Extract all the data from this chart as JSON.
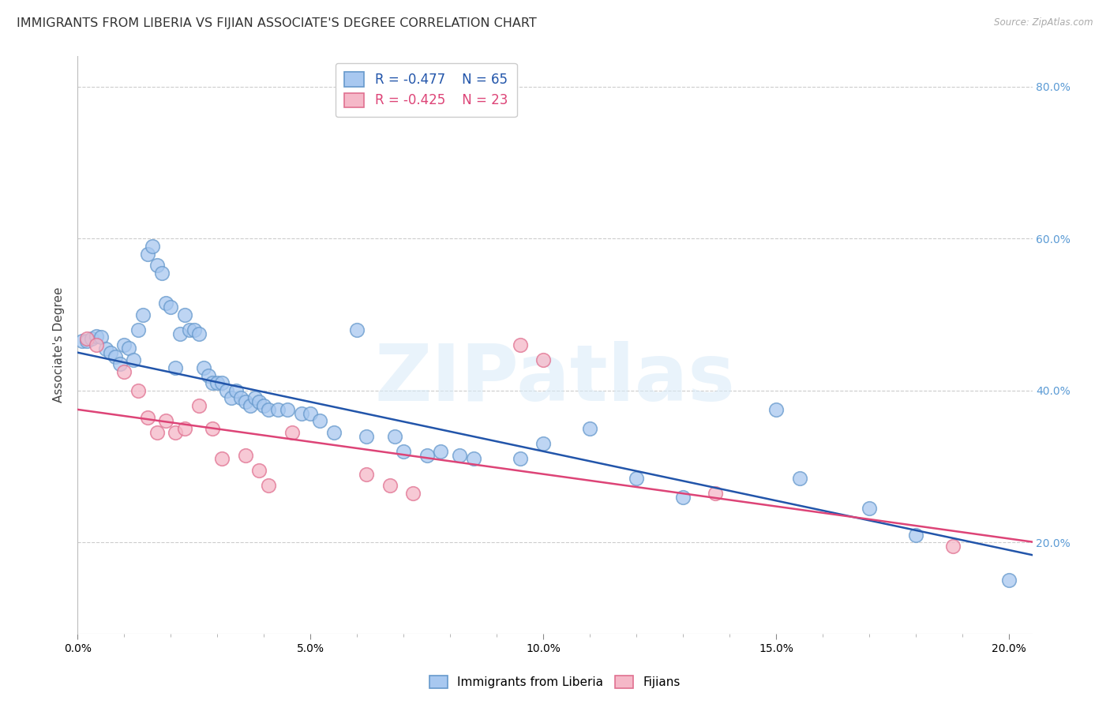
{
  "title": "IMMIGRANTS FROM LIBERIA VS FIJIAN ASSOCIATE'S DEGREE CORRELATION CHART",
  "source": "Source: ZipAtlas.com",
  "ylabel": "Associate's Degree",
  "watermark": "ZIPatlas",
  "xlim": [
    0.0,
    0.205
  ],
  "ylim": [
    0.08,
    0.84
  ],
  "xticks": [
    0.0,
    0.05,
    0.1,
    0.15,
    0.2
  ],
  "yticks": [
    0.2,
    0.4,
    0.6,
    0.8
  ],
  "blue_R": "-0.477",
  "blue_N": "65",
  "pink_R": "-0.425",
  "pink_N": "23",
  "blue_face_color": "#A8C8F0",
  "blue_edge_color": "#6699CC",
  "pink_face_color": "#F5B8C8",
  "pink_edge_color": "#E07090",
  "blue_line_color": "#2255AA",
  "pink_line_color": "#DD4477",
  "blue_intercept": 0.45,
  "blue_slope": -1.3,
  "pink_intercept": 0.375,
  "pink_slope": -0.85,
  "background_color": "#FFFFFF",
  "grid_color": "#CCCCCC",
  "right_axis_color": "#5B9BD5",
  "title_fontsize": 11.5,
  "axis_label_fontsize": 11,
  "tick_fontsize": 10,
  "legend_fontsize": 12,
  "blue_points": [
    [
      0.001,
      0.465
    ],
    [
      0.002,
      0.465
    ],
    [
      0.003,
      0.468
    ],
    [
      0.004,
      0.472
    ],
    [
      0.005,
      0.47
    ],
    [
      0.006,
      0.455
    ],
    [
      0.007,
      0.45
    ],
    [
      0.008,
      0.445
    ],
    [
      0.009,
      0.435
    ],
    [
      0.01,
      0.46
    ],
    [
      0.011,
      0.456
    ],
    [
      0.012,
      0.44
    ],
    [
      0.013,
      0.48
    ],
    [
      0.014,
      0.5
    ],
    [
      0.015,
      0.58
    ],
    [
      0.016,
      0.59
    ],
    [
      0.017,
      0.565
    ],
    [
      0.018,
      0.555
    ],
    [
      0.019,
      0.515
    ],
    [
      0.02,
      0.51
    ],
    [
      0.021,
      0.43
    ],
    [
      0.022,
      0.475
    ],
    [
      0.023,
      0.5
    ],
    [
      0.024,
      0.48
    ],
    [
      0.025,
      0.48
    ],
    [
      0.026,
      0.475
    ],
    [
      0.027,
      0.43
    ],
    [
      0.028,
      0.42
    ],
    [
      0.029,
      0.41
    ],
    [
      0.03,
      0.41
    ],
    [
      0.031,
      0.41
    ],
    [
      0.032,
      0.4
    ],
    [
      0.033,
      0.39
    ],
    [
      0.034,
      0.4
    ],
    [
      0.035,
      0.39
    ],
    [
      0.036,
      0.385
    ],
    [
      0.037,
      0.38
    ],
    [
      0.038,
      0.39
    ],
    [
      0.039,
      0.385
    ],
    [
      0.04,
      0.38
    ],
    [
      0.041,
      0.375
    ],
    [
      0.043,
      0.375
    ],
    [
      0.045,
      0.375
    ],
    [
      0.048,
      0.37
    ],
    [
      0.05,
      0.37
    ],
    [
      0.052,
      0.36
    ],
    [
      0.055,
      0.345
    ],
    [
      0.06,
      0.48
    ],
    [
      0.062,
      0.34
    ],
    [
      0.068,
      0.34
    ],
    [
      0.07,
      0.32
    ],
    [
      0.075,
      0.315
    ],
    [
      0.078,
      0.32
    ],
    [
      0.082,
      0.315
    ],
    [
      0.085,
      0.31
    ],
    [
      0.095,
      0.31
    ],
    [
      0.1,
      0.33
    ],
    [
      0.11,
      0.35
    ],
    [
      0.12,
      0.285
    ],
    [
      0.13,
      0.26
    ],
    [
      0.15,
      0.375
    ],
    [
      0.155,
      0.285
    ],
    [
      0.17,
      0.245
    ],
    [
      0.18,
      0.21
    ],
    [
      0.2,
      0.15
    ]
  ],
  "pink_points": [
    [
      0.002,
      0.468
    ],
    [
      0.004,
      0.46
    ],
    [
      0.01,
      0.425
    ],
    [
      0.013,
      0.4
    ],
    [
      0.015,
      0.365
    ],
    [
      0.017,
      0.345
    ],
    [
      0.019,
      0.36
    ],
    [
      0.021,
      0.345
    ],
    [
      0.023,
      0.35
    ],
    [
      0.026,
      0.38
    ],
    [
      0.029,
      0.35
    ],
    [
      0.031,
      0.31
    ],
    [
      0.036,
      0.315
    ],
    [
      0.039,
      0.295
    ],
    [
      0.041,
      0.275
    ],
    [
      0.046,
      0.345
    ],
    [
      0.062,
      0.29
    ],
    [
      0.067,
      0.275
    ],
    [
      0.072,
      0.265
    ],
    [
      0.095,
      0.46
    ],
    [
      0.1,
      0.44
    ],
    [
      0.137,
      0.265
    ],
    [
      0.188,
      0.195
    ]
  ]
}
